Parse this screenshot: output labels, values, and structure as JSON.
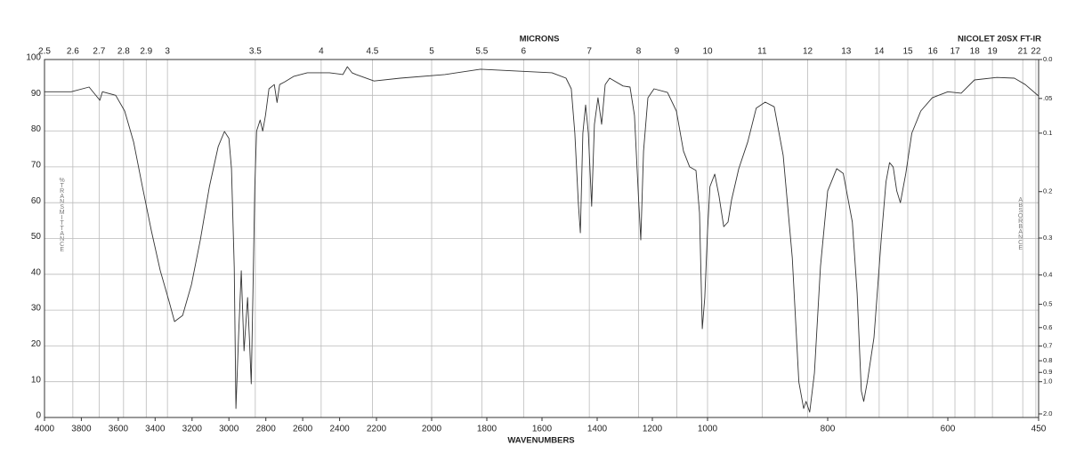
{
  "chart_data": {
    "type": "line",
    "x2label": "MICRONS",
    "annotation": "NICOLET 20SX FT-IR",
    "xlabel": "WAVENUMBERS",
    "ylabel": "%TRANSMITTANCE",
    "y2label": "ABSORBANCE",
    "color": "#333333",
    "xlim": [
      4000,
      450
    ],
    "xticks": [
      4000,
      3800,
      3600,
      3400,
      3200,
      3000,
      2800,
      2600,
      2400,
      2200,
      2000,
      1800,
      1600,
      1400,
      1200,
      1000,
      800,
      600,
      450
    ],
    "x2ticks": [
      2.5,
      2.6,
      2.7,
      2.8,
      2.9,
      3,
      3.5,
      4,
      4.5,
      5,
      5.5,
      6,
      7,
      8,
      9,
      10,
      11,
      12,
      13,
      14,
      15,
      16,
      17,
      18,
      19,
      21,
      22
    ],
    "ylim": [
      0,
      100
    ],
    "yticks": [
      0,
      10,
      20,
      30,
      40,
      50,
      60,
      70,
      80,
      90,
      100
    ],
    "y2scale": "absorbance",
    "y2ticks": [
      {
        "value": 0,
        "label": "0.0"
      },
      {
        "value": 0.05,
        "label": ".05"
      },
      0.1,
      0.2,
      0.3,
      0.4,
      0.5,
      0.6,
      0.7,
      0.8,
      0.9,
      {
        "value": 1,
        "label": "1.0"
      },
      {
        "value": 2,
        "label": "2.0"
      }
    ],
    "grid": true,
    "x": [
      4000,
      3855,
      3758,
      3700,
      3686,
      3614,
      3565,
      3517,
      3469,
      3420,
      3372,
      3324,
      3295,
      3251,
      3203,
      3155,
      3106,
      3058,
      3024,
      3000,
      2986,
      2971,
      2962,
      2947,
      2933,
      2918,
      2899,
      2889,
      2879,
      2870,
      2860,
      2850,
      2831,
      2817,
      2802,
      2783,
      2754,
      2739,
      2725,
      2696,
      2648,
      2575,
      2455,
      2382,
      2358,
      2333,
      2310,
      2213,
      2114,
      1952,
      1823,
      1694,
      1564,
      1513,
      1494,
      1481,
      1468,
      1461,
      1452,
      1442,
      1432,
      1420,
      1410,
      1397,
      1384,
      1371,
      1355,
      1306,
      1281,
      1265,
      1249,
      1242,
      1232,
      1216,
      1194,
      1145,
      1113,
      1087,
      1065,
      1042,
      1029,
      1019,
      1010,
      1000,
      996,
      988,
      981,
      973,
      966,
      960,
      948,
      933,
      919,
      904,
      889,
      874,
      859,
      848,
      840,
      836,
      830,
      822,
      812,
      800,
      785,
      774,
      759,
      751,
      744,
      740,
      734,
      723,
      711,
      703,
      697,
      691,
      685,
      679,
      670,
      660,
      645,
      626,
      600,
      578,
      556,
      519,
      490,
      472,
      450
    ],
    "values": [
      91,
      91,
      92.3,
      88.6,
      91,
      90,
      85.6,
      77,
      64.5,
      52,
      41,
      32.3,
      26.8,
      28.5,
      37.2,
      49.6,
      64.5,
      75.7,
      79.9,
      78,
      69.5,
      42,
      2.5,
      23.6,
      41,
      18.6,
      33.5,
      22.3,
      9.4,
      34.7,
      64.5,
      80,
      83.1,
      80,
      84.4,
      91.8,
      93,
      88,
      93,
      93.8,
      95.3,
      96.3,
      96.3,
      95.8,
      98,
      96.3,
      95.8,
      94,
      94.8,
      95.8,
      97.3,
      96.8,
      96.3,
      94.8,
      91.8,
      79.4,
      59.6,
      51.6,
      79.4,
      87.3,
      79.4,
      59,
      81.9,
      89.3,
      81.9,
      93,
      94.8,
      92.6,
      92.3,
      84.4,
      59.6,
      49.6,
      74.4,
      89.3,
      91.8,
      90.8,
      85.6,
      74.4,
      70,
      69,
      57.1,
      24.8,
      33.5,
      52.1,
      64.5,
      68,
      62,
      53.3,
      54.6,
      60.8,
      69.5,
      77,
      86.4,
      88.1,
      86.8,
      73.2,
      44.7,
      9.9,
      2.5,
      4.5,
      1.5,
      12.4,
      42.2,
      63.3,
      69.5,
      68.2,
      54.6,
      34.7,
      7.4,
      4.5,
      9.9,
      22.3,
      49.6,
      65.8,
      71.2,
      70,
      63.3,
      60,
      68.2,
      79.4,
      85.6,
      89.3,
      91,
      90.6,
      94.3,
      95,
      94.8,
      93,
      89.8
    ]
  }
}
